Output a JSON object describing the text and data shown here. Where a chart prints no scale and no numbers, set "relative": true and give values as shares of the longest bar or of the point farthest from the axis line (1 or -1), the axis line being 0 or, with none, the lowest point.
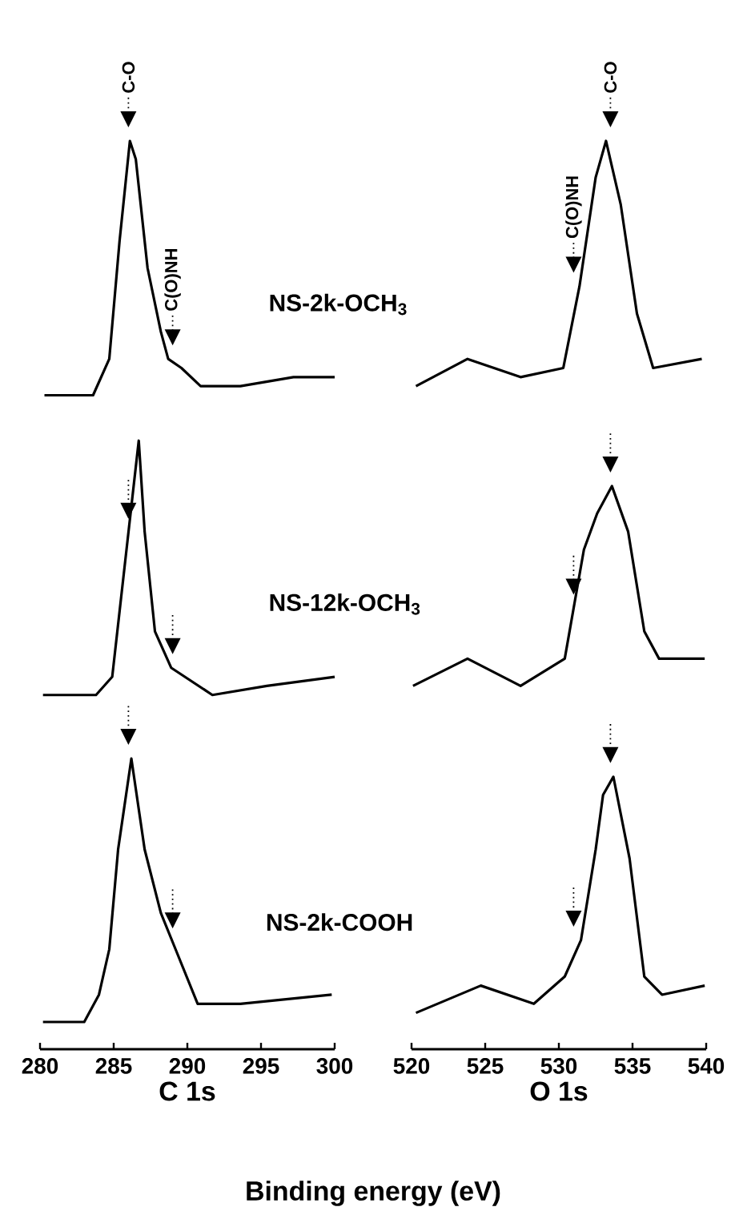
{
  "chart_data": [
    {
      "type": "line",
      "relative": true,
      "xlabel": "C 1s",
      "xlim": [
        280,
        300
      ],
      "xticks": [
        280,
        285,
        290,
        295,
        300
      ],
      "legend": false,
      "series": [
        {
          "name": "NS-2k-OCH$_{3}$",
          "color": "#000000",
          "x": [
            280.3,
            283.6,
            284.7,
            285.4,
            286.1,
            286.5,
            287.3,
            288.2,
            288.7,
            289.6,
            290.9,
            293.6,
            297.2,
            300
          ],
          "values": [
            0.72,
            0.72,
            0.76,
            0.89,
            1.0,
            0.98,
            0.86,
            0.79,
            0.76,
            0.75,
            0.73,
            0.73,
            0.74,
            0.74
          ]
        },
        {
          "name": "NS-12k-OCH$_{3}$",
          "color": "#000000",
          "x": [
            280.2,
            283.8,
            284.9,
            285.8,
            286.7,
            287.1,
            287.8,
            288.9,
            291.7,
            295.4,
            300
          ],
          "values": [
            0.39,
            0.39,
            0.41,
            0.54,
            0.67,
            0.57,
            0.46,
            0.42,
            0.39,
            0.4,
            0.41
          ]
        },
        {
          "name": "NS-2k-COOH",
          "color": "#000000",
          "x": [
            280.2,
            283.0,
            284.0,
            284.7,
            285.3,
            286.2,
            287.1,
            288.2,
            289.2,
            290.7,
            293.6,
            299.8
          ],
          "values": [
            0.03,
            0.03,
            0.06,
            0.11,
            0.22,
            0.32,
            0.22,
            0.15,
            0.11,
            0.05,
            0.05,
            0.06
          ]
        }
      ],
      "annotations": [
        {
          "text": "C-O",
          "x": 286,
          "y": 1.0
        },
        {
          "text": "C(O)NH",
          "x": 289,
          "y": 0.76
        },
        "Binding energy (eV)"
      ]
    },
    {
      "type": "line",
      "relative": true,
      "xlabel": "O 1s",
      "xlim": [
        520,
        540
      ],
      "xticks": [
        520,
        525,
        530,
        535,
        540
      ],
      "legend": false,
      "series": [
        {
          "color": "#000000",
          "x": [
            520.3,
            523.8,
            527.4,
            530.3,
            531.4,
            532.5,
            533.2,
            534.2,
            535.3,
            536.4,
            539.7
          ],
          "values": [
            0.73,
            0.76,
            0.74,
            0.75,
            0.84,
            0.96,
            1.0,
            0.93,
            0.81,
            0.75,
            0.76
          ]
        },
        {
          "color": "#000000",
          "x": [
            520.1,
            523.8,
            527.4,
            530.4,
            531.7,
            532.6,
            533.6,
            534.7,
            535.8,
            536.8,
            539.9
          ],
          "values": [
            0.4,
            0.43,
            0.4,
            0.43,
            0.55,
            0.59,
            0.62,
            0.57,
            0.46,
            0.43,
            0.43
          ]
        },
        {
          "color": "#000000",
          "x": [
            520.3,
            524.7,
            528.3,
            530.4,
            531.5,
            532.5,
            533.0,
            533.7,
            534.8,
            535.8,
            537.0,
            539.9
          ],
          "values": [
            0.04,
            0.07,
            0.05,
            0.08,
            0.12,
            0.22,
            0.28,
            0.3,
            0.21,
            0.08,
            0.06,
            0.07
          ]
        }
      ],
      "annotations": [
        {
          "text": "C(O)NH",
          "x": 531,
          "y": 0.84
        },
        {
          "text": "C-O",
          "x": 533.5,
          "y": 1.0
        }
      ]
    }
  ]
}
